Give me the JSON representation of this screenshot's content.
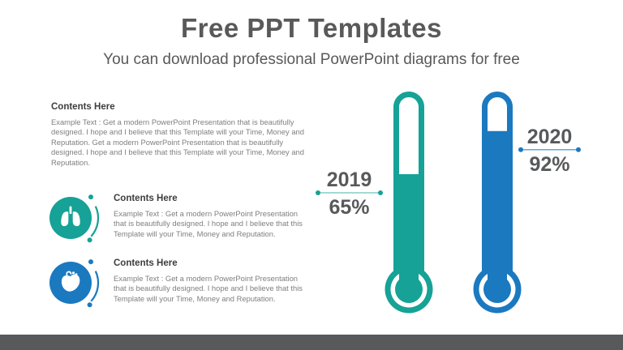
{
  "header": {
    "title": "Free PPT Templates",
    "subtitle": "You can download professional PowerPoint diagrams for free"
  },
  "sections": [
    {
      "heading": "Contents Here",
      "body": "Example Text : Get a modern PowerPoint Presentation that is beautifully designed. I hope and I believe that this Template will your Time, Money and Reputation. Get a modern PowerPoint Presentation that is beautifully designed. I hope and I believe that this Template will your Time, Money and Reputation."
    },
    {
      "heading": "Contents Here",
      "body": "Example Text : Get a modern PowerPoint Presentation that is beautifully designed. I hope and I believe that this Template will your Time, Money and Reputation.",
      "icon": "lungs-icon",
      "color": "#16A296"
    },
    {
      "heading": "Contents Here",
      "body": "Example Text : Get a modern PowerPoint Presentation that is beautifully designed. I hope and I believe that this Template will your Time, Money and Reputation.",
      "icon": "heart-icon",
      "color": "#1B79C0"
    }
  ],
  "chart_data": {
    "type": "bar",
    "variant": "thermometer",
    "categories": [
      "2019",
      "2020"
    ],
    "values": [
      65,
      92
    ],
    "labels": [
      "65%",
      "92%"
    ],
    "unit": "%",
    "ylim": [
      0,
      100
    ],
    "series_colors": [
      "#16A296",
      "#1B79C0"
    ],
    "line_colors": [
      "#8FD0C9",
      "#62A9DB"
    ],
    "legend_position": "none",
    "grid": false
  },
  "footer": {
    "bar_color": "#58595b"
  }
}
